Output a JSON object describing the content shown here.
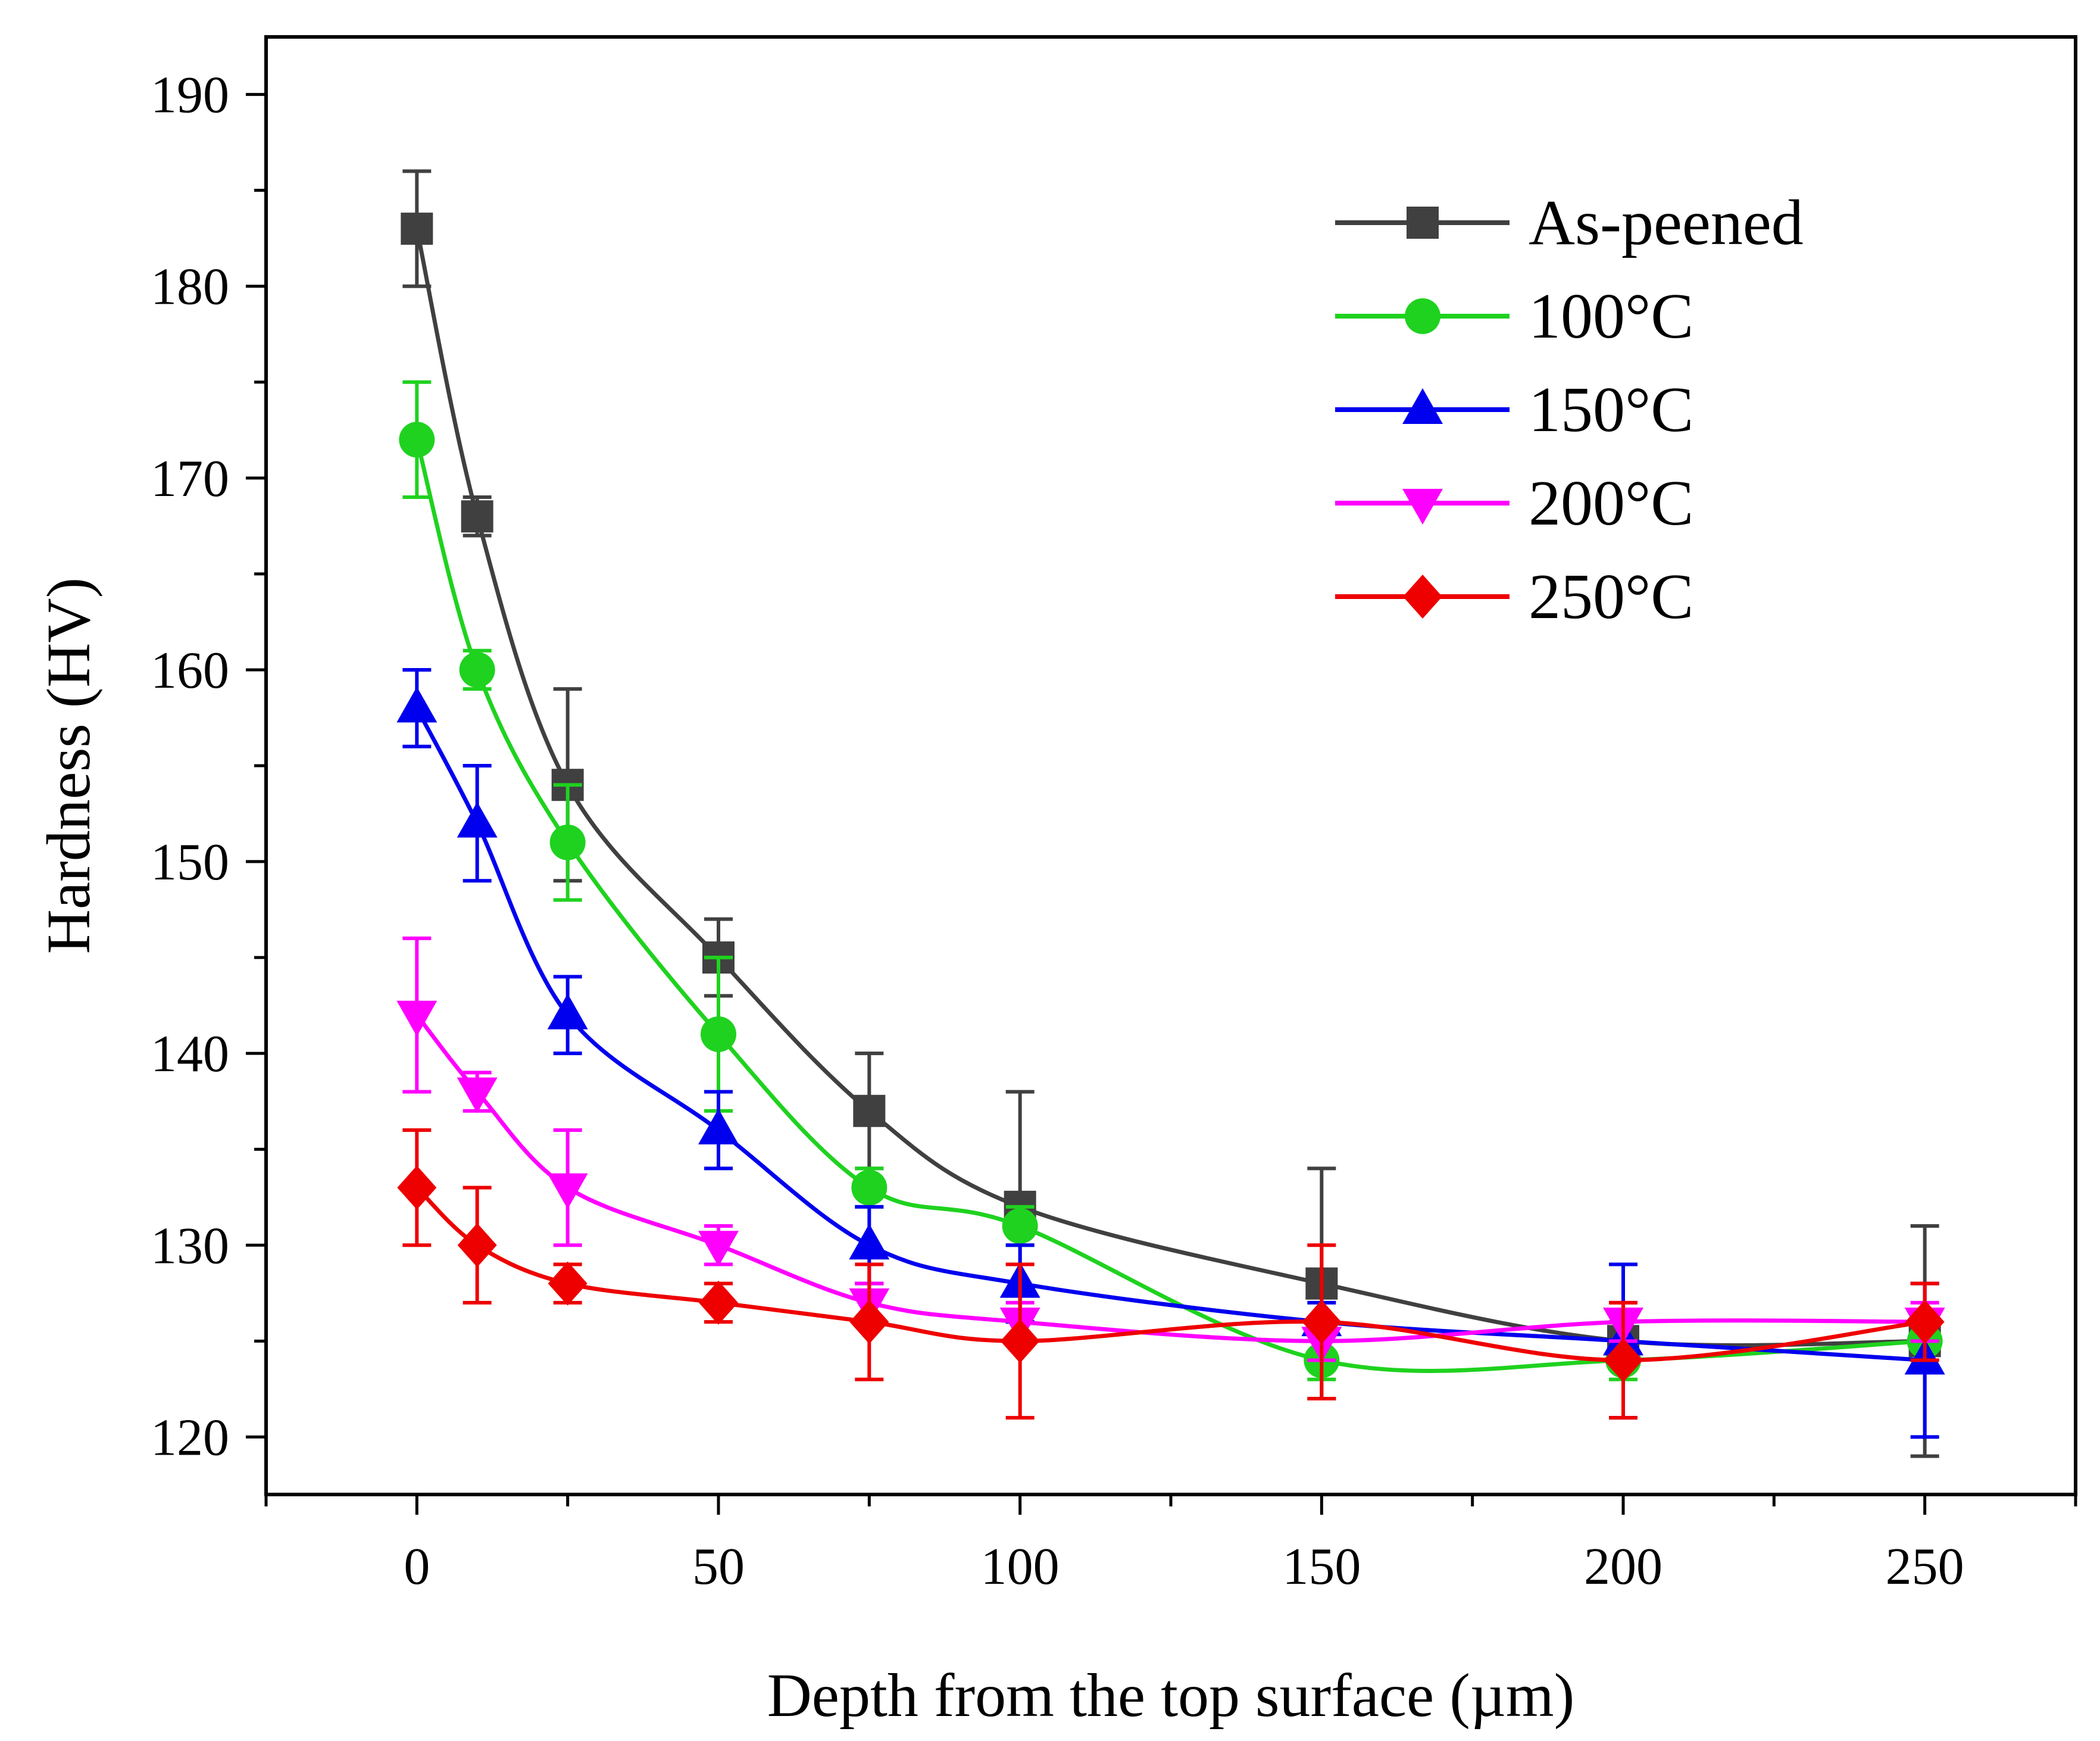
{
  "chart_data": {
    "type": "line",
    "title": "",
    "xlabel": "Depth from the top surface (µm)",
    "ylabel": "Hardness (HV)",
    "xlim": [
      -25,
      275
    ],
    "ylim": [
      117,
      193
    ],
    "xticks": [
      0,
      50,
      100,
      150,
      200,
      250
    ],
    "yticks": [
      120,
      130,
      140,
      150,
      160,
      170,
      180,
      190
    ],
    "x": [
      0,
      10,
      25,
      50,
      75,
      100,
      150,
      200,
      250
    ],
    "legend_position": "top-right",
    "series": [
      {
        "name": "As-peened",
        "color": "#404040",
        "marker": "square",
        "values": [
          183,
          168,
          154,
          145,
          137,
          132,
          128,
          125,
          125
        ],
        "errors": [
          3,
          1,
          5,
          2,
          3,
          6,
          6,
          1,
          6
        ]
      },
      {
        "name": "100°C",
        "color": "#1fd21f",
        "marker": "circle",
        "values": [
          172,
          160,
          151,
          141,
          133,
          131,
          124,
          124,
          125
        ],
        "errors": [
          3,
          1,
          3,
          4,
          1,
          1,
          1,
          1,
          1
        ]
      },
      {
        "name": "150°C",
        "color": "#0000ee",
        "marker": "triangle-up",
        "values": [
          158,
          152,
          142,
          136,
          130,
          128,
          126,
          125,
          124
        ],
        "errors": [
          2,
          3,
          2,
          2,
          2,
          2,
          1,
          4,
          4
        ]
      },
      {
        "name": "200°C",
        "color": "#ff00ff",
        "marker": "triangle-down",
        "values": [
          142,
          138,
          133,
          130,
          127,
          126,
          125,
          126,
          126
        ],
        "errors": [
          4,
          1,
          3,
          1,
          1,
          1,
          1,
          1,
          1
        ]
      },
      {
        "name": "250°C",
        "color": "#ee0000",
        "marker": "diamond",
        "values": [
          133,
          130,
          128,
          127,
          126,
          125,
          126,
          124,
          126
        ],
        "errors": [
          3,
          3,
          1,
          1,
          3,
          4,
          4,
          3,
          2
        ]
      }
    ]
  }
}
